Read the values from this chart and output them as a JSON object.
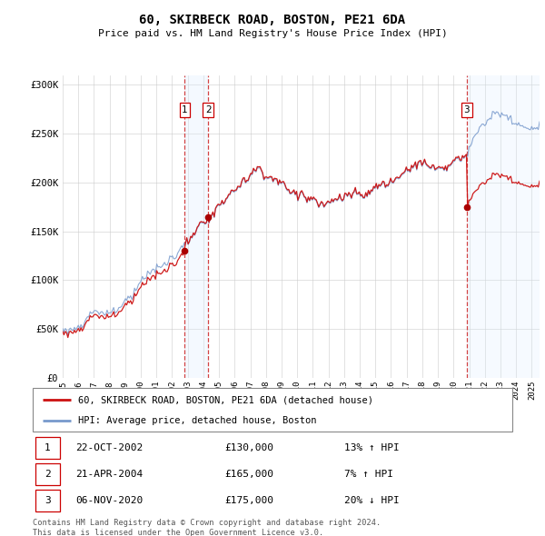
{
  "title": "60, SKIRBECK ROAD, BOSTON, PE21 6DA",
  "subtitle": "Price paid vs. HM Land Registry's House Price Index (HPI)",
  "ylabel_ticks": [
    "£0",
    "£50K",
    "£100K",
    "£150K",
    "£200K",
    "£250K",
    "£300K"
  ],
  "ytick_values": [
    0,
    50000,
    100000,
    150000,
    200000,
    250000,
    300000
  ],
  "ylim": [
    0,
    310000
  ],
  "xlim_start": 1995.0,
  "xlim_end": 2025.5,
  "hpi_color": "#7799cc",
  "price_color": "#cc1111",
  "sale_color": "#aa0000",
  "vline_color": "#cc2222",
  "shade_color": "#ddeeff",
  "sales": [
    {
      "label": "1",
      "date": 2002.81,
      "price": 130000,
      "pct": "13%",
      "dir": "↑",
      "date_str": "22-OCT-2002",
      "price_str": "£130,000"
    },
    {
      "label": "2",
      "date": 2004.31,
      "price": 165000,
      "pct": "7%",
      "dir": "↑",
      "date_str": "21-APR-2004",
      "price_str": "£165,000"
    },
    {
      "label": "3",
      "date": 2020.85,
      "price": 175000,
      "pct": "20%",
      "dir": "↓",
      "date_str": "06-NOV-2020",
      "price_str": "£175,000"
    }
  ],
  "legend_property": "60, SKIRBECK ROAD, BOSTON, PE21 6DA (detached house)",
  "legend_hpi": "HPI: Average price, detached house, Boston",
  "footnote": "Contains HM Land Registry data © Crown copyright and database right 2024.\nThis data is licensed under the Open Government Licence v3.0.",
  "xtick_years": [
    1995,
    1996,
    1997,
    1998,
    1999,
    2000,
    2001,
    2002,
    2003,
    2004,
    2005,
    2006,
    2007,
    2008,
    2009,
    2010,
    2011,
    2012,
    2013,
    2014,
    2015,
    2016,
    2017,
    2018,
    2019,
    2020,
    2021,
    2022,
    2023,
    2024,
    2025
  ]
}
